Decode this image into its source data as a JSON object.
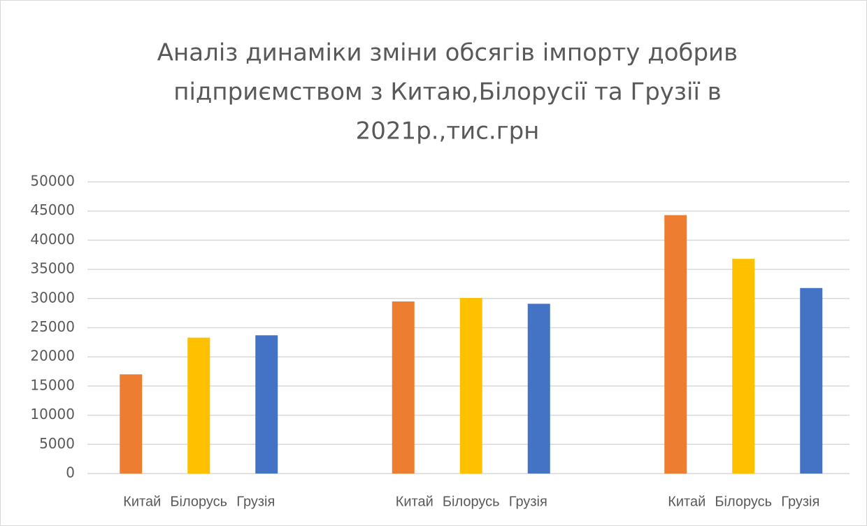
{
  "chart_data": {
    "type": "bar",
    "title": [
      "Аналіз динаміки зміни обсягів імпорту добрив",
      "підприємством з Китаю,Білорусії та Грузії в",
      "2021р.,тис.грн"
    ],
    "categories": [
      "Китай",
      "Білорусь",
      "Грузія",
      "Китай",
      "Білорусь",
      "Грузія",
      "Китай",
      "Білорусь",
      "Грузія"
    ],
    "values": [
      17000,
      23300,
      23700,
      29500,
      30100,
      29100,
      44300,
      36800,
      31800
    ],
    "colors": [
      "#ed7d31",
      "#ffc000",
      "#4472c4",
      "#ed7d31",
      "#ffc000",
      "#4472c4",
      "#ed7d31",
      "#ffc000",
      "#4472c4"
    ],
    "ylim": [
      0,
      50000
    ],
    "yticks": [
      0,
      5000,
      10000,
      15000,
      20000,
      25000,
      30000,
      35000,
      40000,
      45000,
      50000
    ],
    "grid": true
  }
}
